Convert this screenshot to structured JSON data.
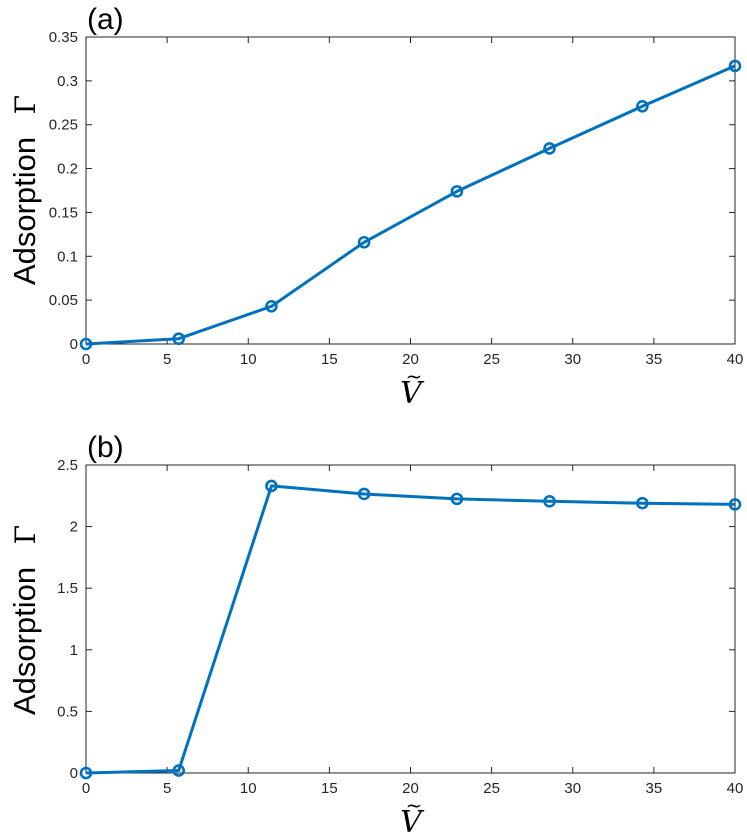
{
  "colors": {
    "series": "#0072BD",
    "axis": "#262626",
    "background": "#ffffff"
  },
  "chart_data": [
    {
      "type": "line",
      "panel_label": "(a)",
      "ylabel_word": "Adsorption",
      "ylabel_symbol": "Γ",
      "xlabel_base": "V",
      "xlabel_accent": "~",
      "xlim": [
        0,
        40
      ],
      "ylim": [
        0,
        0.35
      ],
      "xticks": [
        0,
        5,
        10,
        15,
        20,
        25,
        30,
        35,
        40
      ],
      "xtick_labels": [
        "0",
        "5",
        "10",
        "15",
        "20",
        "25",
        "30",
        "35",
        "40"
      ],
      "yticks": [
        0,
        0.05,
        0.1,
        0.15,
        0.2,
        0.25,
        0.3,
        0.35
      ],
      "ytick_labels": [
        "0",
        "0.05",
        "0.1",
        "0.15",
        "0.2",
        "0.25",
        "0.3",
        "0.35"
      ],
      "grid": false,
      "x": [
        0,
        5.714,
        11.43,
        17.14,
        22.86,
        28.57,
        34.29,
        40
      ],
      "y": [
        0.0,
        0.006,
        0.043,
        0.116,
        0.174,
        0.223,
        0.271,
        0.317
      ]
    },
    {
      "type": "line",
      "panel_label": "(b)",
      "ylabel_word": "Adsorption",
      "ylabel_symbol": "Γ",
      "xlabel_base": "V",
      "xlabel_accent": "~",
      "xlim": [
        0,
        40
      ],
      "ylim": [
        0,
        2.5
      ],
      "xticks": [
        0,
        5,
        10,
        15,
        20,
        25,
        30,
        35,
        40
      ],
      "xtick_labels": [
        "0",
        "5",
        "10",
        "15",
        "20",
        "25",
        "30",
        "35",
        "40"
      ],
      "yticks": [
        0,
        0.5,
        1,
        1.5,
        2,
        2.5
      ],
      "ytick_labels": [
        "0",
        "0.5",
        "1",
        "1.5",
        "2",
        "2.5"
      ],
      "grid": false,
      "x": [
        0,
        5.714,
        11.43,
        17.14,
        22.86,
        28.57,
        34.29,
        40
      ],
      "y": [
        0.0,
        0.02,
        2.33,
        2.265,
        2.225,
        2.205,
        2.19,
        2.18
      ]
    }
  ]
}
